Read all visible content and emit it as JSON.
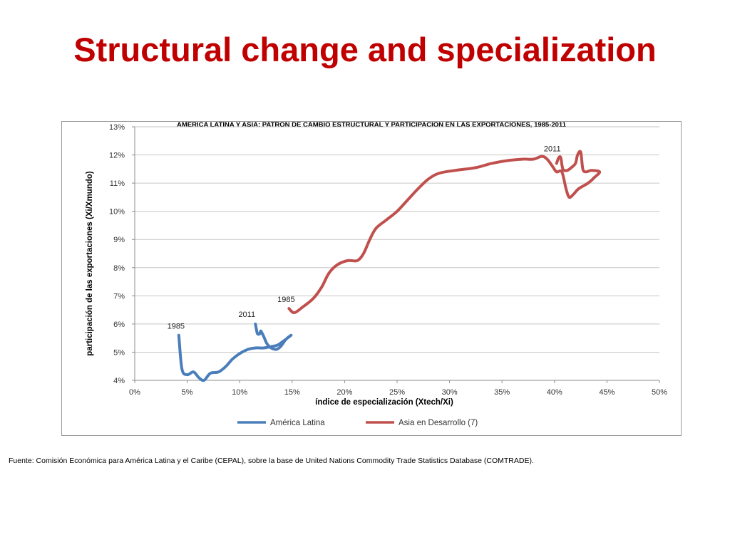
{
  "slide": {
    "title": "Structural change and specialization",
    "source": "Fuente: Comisión Económica para América Latina y el Caribe (CEPAL), sobre la base de United Nations Commodity Trade Statistics Database (COMTRADE)."
  },
  "chart_data": {
    "type": "line",
    "title": "AMÉRICA LATINA Y ASIA: PATRÓN DE CAMBIO ESTRUCTURAL Y PARTICIPACIÓN EN LAS EXPORTACIONES, 1985-2011",
    "xlabel": "índice de especialización (Xtech/Xi)",
    "ylabel": "participación de las exportaciones (Xi/Xmundo)",
    "xlim": [
      0,
      50
    ],
    "ylim": [
      4,
      13
    ],
    "x_ticks": [
      0,
      5,
      10,
      15,
      20,
      25,
      30,
      35,
      40,
      45,
      50
    ],
    "y_ticks": [
      4,
      5,
      6,
      7,
      8,
      9,
      10,
      11,
      12,
      13
    ],
    "x_tick_labels": [
      "0%",
      "5%",
      "10%",
      "15%",
      "20%",
      "25%",
      "30%",
      "35%",
      "40%",
      "45%",
      "50%"
    ],
    "y_tick_labels": [
      "4%",
      "5%",
      "6%",
      "7%",
      "8%",
      "9%",
      "10%",
      "11%",
      "12%",
      "13%"
    ],
    "grid": "horizontal",
    "legend_position": "bottom",
    "series": [
      {
        "name": "América Latina",
        "color": "#4a7ebb",
        "points": [
          [
            4.2,
            5.6
          ],
          [
            4.5,
            4.4
          ],
          [
            5.0,
            4.2
          ],
          [
            5.6,
            4.3
          ],
          [
            6.1,
            4.1
          ],
          [
            6.6,
            4.0
          ],
          [
            7.2,
            4.25
          ],
          [
            8.0,
            4.3
          ],
          [
            8.7,
            4.5
          ],
          [
            9.3,
            4.75
          ],
          [
            10.0,
            4.95
          ],
          [
            10.8,
            5.1
          ],
          [
            11.5,
            5.15
          ],
          [
            12.3,
            5.15
          ],
          [
            13.0,
            5.2
          ],
          [
            13.6,
            5.25
          ],
          [
            14.2,
            5.4
          ],
          [
            14.9,
            5.6
          ],
          [
            14.4,
            5.45
          ],
          [
            13.9,
            5.2
          ],
          [
            13.5,
            5.1
          ],
          [
            13.0,
            5.15
          ],
          [
            12.6,
            5.3
          ],
          [
            12.3,
            5.55
          ],
          [
            12.1,
            5.7
          ],
          [
            12.0,
            5.75
          ],
          [
            11.9,
            5.65
          ],
          [
            11.7,
            5.65
          ],
          [
            11.6,
            5.8
          ],
          [
            11.5,
            6.0
          ]
        ],
        "label_start": "1985",
        "label_end": "2011"
      },
      {
        "name": "Asia en Desarrollo (7)",
        "color": "#c0504d",
        "points": [
          [
            14.7,
            6.55
          ],
          [
            15.2,
            6.4
          ],
          [
            16.0,
            6.6
          ],
          [
            17.0,
            6.9
          ],
          [
            17.8,
            7.3
          ],
          [
            18.5,
            7.8
          ],
          [
            19.3,
            8.1
          ],
          [
            20.3,
            8.25
          ],
          [
            21.2,
            8.25
          ],
          [
            21.8,
            8.5
          ],
          [
            22.4,
            9.0
          ],
          [
            23.0,
            9.4
          ],
          [
            24.0,
            9.7
          ],
          [
            25.0,
            10.0
          ],
          [
            26.0,
            10.4
          ],
          [
            27.0,
            10.8
          ],
          [
            28.0,
            11.15
          ],
          [
            29.0,
            11.35
          ],
          [
            30.5,
            11.45
          ],
          [
            32.5,
            11.55
          ],
          [
            34.0,
            11.7
          ],
          [
            35.5,
            11.8
          ],
          [
            37.0,
            11.85
          ],
          [
            38.0,
            11.85
          ],
          [
            38.8,
            11.95
          ],
          [
            39.3,
            11.85
          ],
          [
            39.8,
            11.6
          ],
          [
            40.2,
            11.4
          ],
          [
            40.7,
            11.4
          ],
          [
            41.1,
            10.8
          ],
          [
            41.4,
            10.5
          ],
          [
            41.8,
            10.6
          ],
          [
            42.3,
            10.8
          ],
          [
            43.2,
            11.0
          ],
          [
            43.8,
            11.2
          ],
          [
            44.3,
            11.4
          ],
          [
            43.5,
            11.45
          ],
          [
            43.0,
            11.4
          ],
          [
            42.7,
            11.5
          ],
          [
            42.5,
            12.1
          ],
          [
            42.2,
            12.0
          ],
          [
            42.0,
            11.7
          ],
          [
            41.6,
            11.55
          ],
          [
            41.2,
            11.45
          ],
          [
            40.8,
            11.5
          ],
          [
            40.6,
            11.9
          ],
          [
            40.4,
            11.9
          ],
          [
            40.2,
            11.7
          ]
        ],
        "label_start": "1985",
        "label_end": "2011"
      }
    ]
  }
}
